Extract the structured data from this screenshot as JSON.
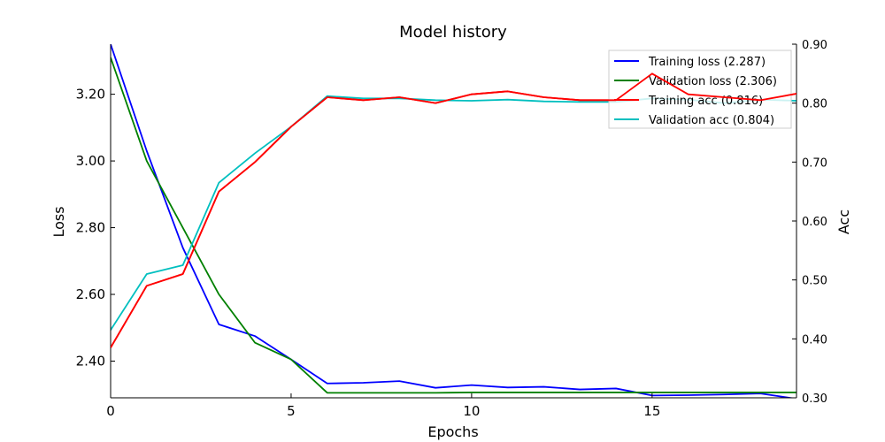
{
  "chart_data": {
    "type": "line",
    "title": "Model history",
    "xlabel": "Epochs",
    "ylabel_left": "Loss",
    "ylabel_right": "Acc",
    "xlim": [
      0,
      19
    ],
    "ylim_left": [
      2.29,
      3.35
    ],
    "ylim_right": [
      0.3,
      0.9
    ],
    "xticks": [
      0,
      5,
      10,
      15
    ],
    "xtick_labels": [
      "0",
      "5",
      "10",
      "15"
    ],
    "yticks_left": [
      2.4,
      2.6,
      2.8,
      3.0,
      3.2
    ],
    "ytick_labels_left": [
      "2.40",
      "2.60",
      "2.80",
      "3.00",
      "3.20"
    ],
    "yticks_right": [
      0.3,
      0.4,
      0.5,
      0.6,
      0.7,
      0.8,
      0.9
    ],
    "ytick_labels_right": [
      "0.30",
      "0.40",
      "0.50",
      "0.60",
      "0.70",
      "0.80",
      "0.90"
    ],
    "grid": false,
    "legend_position": "top-right",
    "x": [
      0,
      1,
      2,
      3,
      4,
      5,
      6,
      7,
      8,
      9,
      10,
      11,
      12,
      13,
      14,
      15,
      16,
      17,
      18,
      19
    ],
    "series": [
      {
        "name": "Training loss (2.287)",
        "axis": "left",
        "color": "#0000ff",
        "values": [
          3.35,
          3.03,
          2.74,
          2.51,
          2.475,
          2.405,
          2.333,
          2.335,
          2.34,
          2.32,
          2.328,
          2.321,
          2.323,
          2.315,
          2.318,
          2.297,
          2.298,
          2.3,
          2.303,
          2.287
        ]
      },
      {
        "name": "Validation loss (2.306)",
        "axis": "left",
        "color": "#008000",
        "values": [
          3.31,
          3.0,
          2.8,
          2.6,
          2.455,
          2.405,
          2.305,
          2.305,
          2.305,
          2.305,
          2.306,
          2.306,
          2.306,
          2.306,
          2.306,
          2.306,
          2.306,
          2.306,
          2.306,
          2.306
        ]
      },
      {
        "name": "Training acc (0.816)",
        "axis": "right",
        "color": "#ff0000",
        "values": [
          0.385,
          0.49,
          0.51,
          0.65,
          0.7,
          0.76,
          0.81,
          0.805,
          0.81,
          0.8,
          0.815,
          0.82,
          0.81,
          0.805,
          0.805,
          0.85,
          0.815,
          0.81,
          0.805,
          0.816
        ]
      },
      {
        "name": "Validation acc (0.804)",
        "axis": "right",
        "color": "#00bfbf",
        "values": [
          0.415,
          0.51,
          0.525,
          0.665,
          0.715,
          0.76,
          0.812,
          0.808,
          0.808,
          0.805,
          0.804,
          0.806,
          0.803,
          0.802,
          0.802,
          0.808,
          0.806,
          0.8,
          0.806,
          0.804
        ]
      }
    ]
  }
}
